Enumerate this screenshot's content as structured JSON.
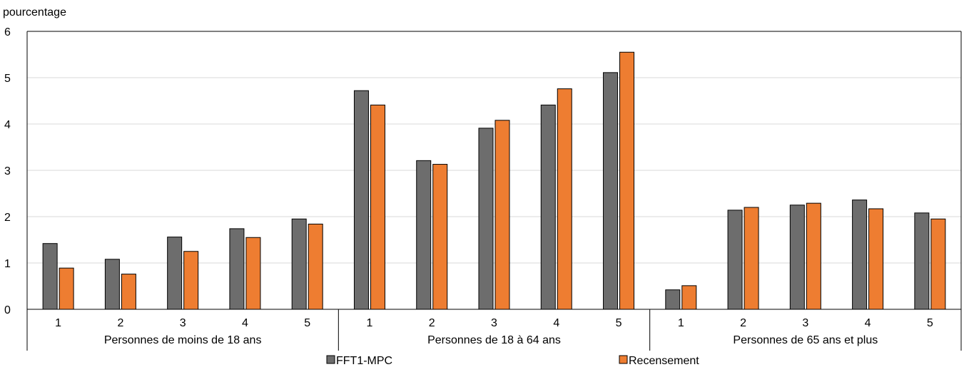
{
  "chart_data": {
    "type": "bar",
    "ylabel": "pourcentage",
    "ylim": [
      0,
      6
    ],
    "yticks": [
      "0",
      "1",
      "2",
      "3",
      "4",
      "5",
      "6"
    ],
    "grid": true,
    "legend_position": "bottom",
    "groups": [
      {
        "label": "Personnes de moins de 18 ans",
        "categories": [
          "1",
          "2",
          "3",
          "4",
          "5"
        ]
      },
      {
        "label": "Personnes de 18 à 64 ans",
        "categories": [
          "1",
          "2",
          "3",
          "4",
          "5"
        ]
      },
      {
        "label": "Personnes de 65 ans et plus",
        "categories": [
          "1",
          "2",
          "3",
          "4",
          "5"
        ]
      }
    ],
    "series": [
      {
        "name": "FFT1-MPC",
        "color": "#6d6d6d",
        "values": [
          1.42,
          1.08,
          1.56,
          1.74,
          1.95,
          4.72,
          3.21,
          3.91,
          4.41,
          5.11,
          0.42,
          2.14,
          2.25,
          2.36,
          2.08
        ]
      },
      {
        "name": "Recensement",
        "color": "#ee7d31",
        "values": [
          0.89,
          0.76,
          1.25,
          1.55,
          1.84,
          4.41,
          3.13,
          4.08,
          4.76,
          5.55,
          0.51,
          2.2,
          2.29,
          2.17,
          1.95
        ]
      }
    ]
  }
}
